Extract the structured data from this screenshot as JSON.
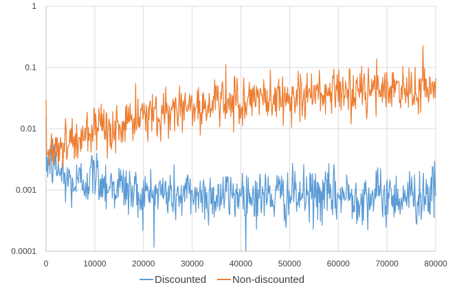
{
  "chart_data": {
    "type": "line",
    "title": "",
    "xlabel": "",
    "ylabel": "",
    "xlim": [
      0,
      80000
    ],
    "ylim": [
      0.0001,
      1
    ],
    "y_scale": "log",
    "grid": true,
    "legend_position": "bottom",
    "x_ticks": [
      "0",
      "10000",
      "20000",
      "30000",
      "40000",
      "50000",
      "60000",
      "70000",
      "80000"
    ],
    "y_ticks": [
      "1",
      "0.1",
      "0.01",
      "0.001",
      "0.0001"
    ],
    "series": [
      {
        "name": "Discounted",
        "color": "#5B9BD5",
        "x": [
          0,
          2000,
          4000,
          6000,
          8000,
          10000,
          12000,
          14000,
          16000,
          18000,
          20000,
          22000,
          24000,
          26000,
          28000,
          30000,
          32000,
          34000,
          36000,
          38000,
          40000,
          42000,
          44000,
          46000,
          48000,
          50000,
          52000,
          54000,
          56000,
          58000,
          60000,
          62000,
          64000,
          66000,
          68000,
          70000,
          72000,
          74000,
          76000,
          78000,
          80000
        ],
        "values": [
          0.003,
          0.0025,
          0.0015,
          0.0012,
          0.0015,
          0.0018,
          0.0013,
          0.0012,
          0.0011,
          0.0009,
          0.0008,
          0.0009,
          0.0009,
          0.0008,
          0.0008,
          0.0009,
          0.0008,
          0.0008,
          0.0008,
          0.0008,
          0.0009,
          0.0008,
          0.0008,
          0.0008,
          0.0008,
          0.0008,
          0.0008,
          0.0008,
          0.0008,
          0.0008,
          0.0008,
          0.0008,
          0.0008,
          0.0008,
          0.0008,
          0.0008,
          0.0008,
          0.0008,
          0.0008,
          0.0009,
          0.0009
        ]
      },
      {
        "name": "Non-discounted",
        "color": "#ED7D31",
        "x": [
          0,
          2000,
          4000,
          6000,
          8000,
          10000,
          12000,
          14000,
          16000,
          18000,
          20000,
          22000,
          24000,
          26000,
          28000,
          30000,
          32000,
          34000,
          36000,
          38000,
          40000,
          42000,
          44000,
          46000,
          48000,
          50000,
          52000,
          54000,
          56000,
          58000,
          60000,
          62000,
          64000,
          66000,
          68000,
          70000,
          72000,
          74000,
          76000,
          78000,
          80000
        ],
        "values": [
          0.004,
          0.005,
          0.006,
          0.0065,
          0.007,
          0.008,
          0.009,
          0.01,
          0.012,
          0.013,
          0.015,
          0.017,
          0.019,
          0.02,
          0.022,
          0.023,
          0.024,
          0.025,
          0.026,
          0.027,
          0.028,
          0.029,
          0.03,
          0.031,
          0.032,
          0.033,
          0.034,
          0.035,
          0.036,
          0.037,
          0.038,
          0.039,
          0.04,
          0.041,
          0.042,
          0.043,
          0.044,
          0.045,
          0.045,
          0.045,
          0.045
        ]
      }
    ]
  }
}
